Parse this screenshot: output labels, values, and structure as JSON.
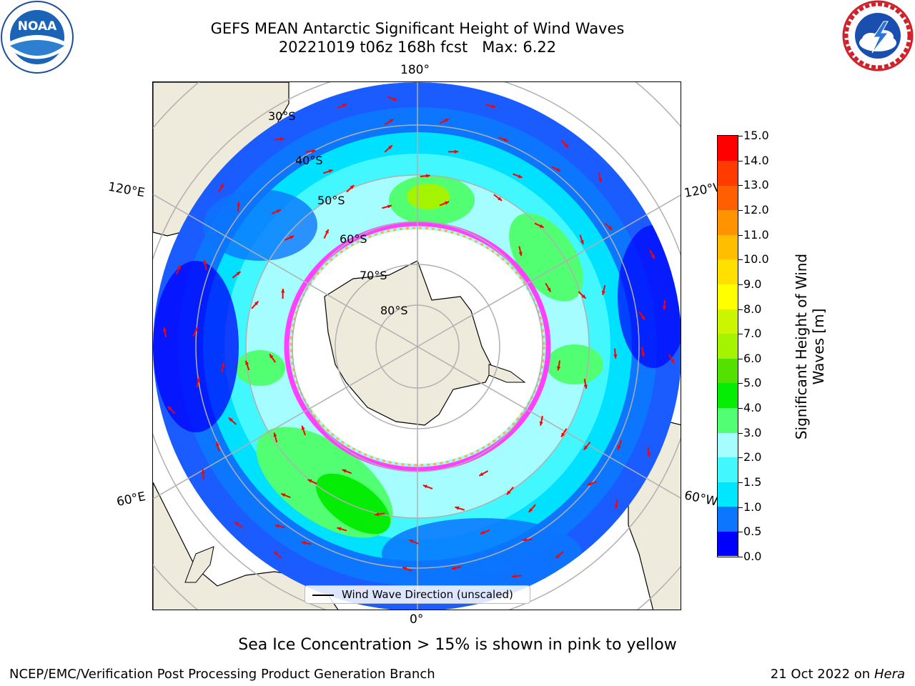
{
  "title": {
    "line1": "GEFS MEAN Antarctic Significant Height of Wind Waves",
    "line2": "20221019 t06z 168h fcst   Max: 6.22"
  },
  "map": {
    "projection": "south-polar-stereographic",
    "longitude_labels": {
      "top": "180°",
      "upper_left": "120°E",
      "upper_right": "120°W",
      "lower_left": "60°E",
      "lower_right": "60°W",
      "bottom": "0°"
    },
    "latitude_labels": [
      "30°S",
      "40°S",
      "50°S",
      "60°S",
      "70°S",
      "80°S"
    ],
    "colors": {
      "land": "#efebdc",
      "ice": "#ffffff",
      "ice_edge": [
        "#ff40ff",
        "#ff8cff",
        "#ffb040",
        "#ffe060"
      ],
      "gridline": "#b0b0b0",
      "arrow": "#ff0000"
    }
  },
  "legend": {
    "label": "Wind Wave Direction (unscaled)"
  },
  "colorbar": {
    "label_line1": "Significant Height of Wind",
    "label_line2": "Waves [m]",
    "ticks": [
      "0.0",
      "0.5",
      "1.0",
      "1.5",
      "2.0",
      "3.0",
      "4.0",
      "5.0",
      "6.0",
      "7.0",
      "8.0",
      "9.0",
      "10.0",
      "11.0",
      "12.0",
      "13.0",
      "14.0",
      "15.0"
    ],
    "colors": [
      "#0000ff",
      "#0c76ff",
      "#00e6ff",
      "#43f7ff",
      "#a6fdff",
      "#52ff72",
      "#05ec05",
      "#54e000",
      "#a4f300",
      "#cbf500",
      "#ffff00",
      "#ffe000",
      "#ffbf00",
      "#ff9300",
      "#ff5f00",
      "#ff3b00",
      "#ff0000"
    ]
  },
  "notes": {
    "sea_ice": "Sea Ice Concentration > 15% is shown in pink to yellow"
  },
  "footer": {
    "left": "NCEP/EMC/Verification Post Processing Product Generation Branch",
    "right_date": "21 Oct 2022 on ",
    "right_host": "Hera"
  },
  "logos": {
    "left": "NOAA",
    "right": "NATIONAL WEATHER SERVICE",
    "left_ring_text": "NATIONAL OCEANIC AND ATMOSPHERIC ADMINISTRATION · U.S. DEPARTMENT OF COMMERCE"
  }
}
